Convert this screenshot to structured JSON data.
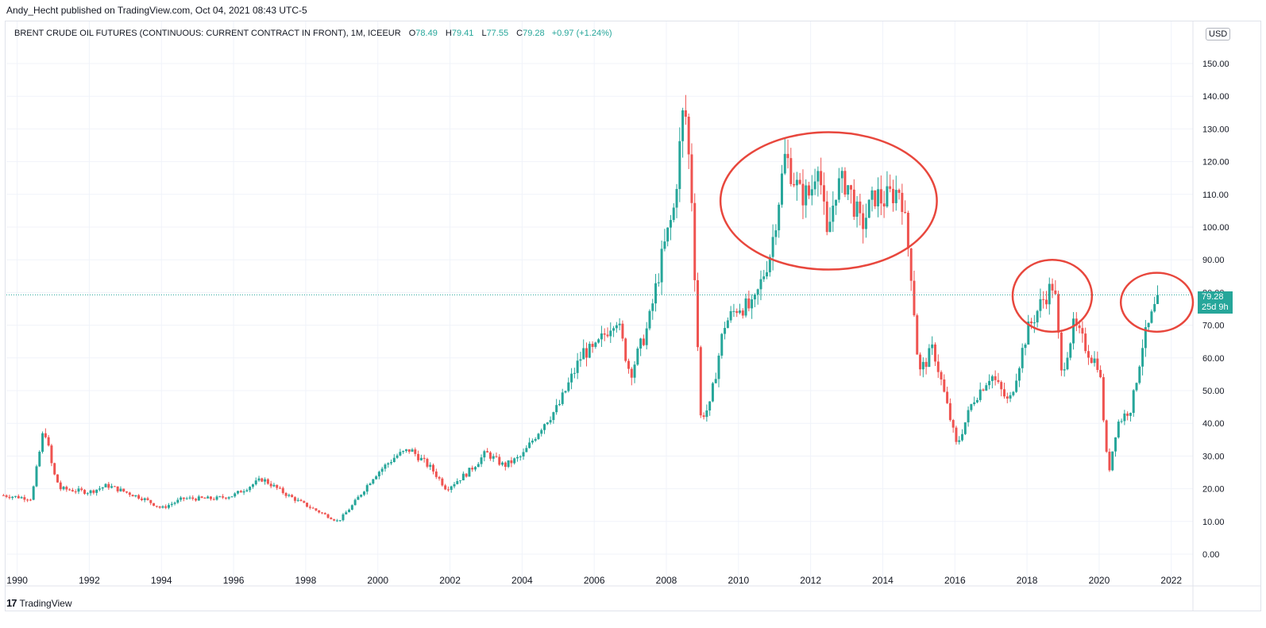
{
  "header": {
    "published": "Andy_Hecht published on TradingView.com, Oct 04, 2021 08:43 UTC-5"
  },
  "legend": {
    "symbol": "BRENT CRUDE OIL FUTURES (CONTINUOUS: CURRENT CONTRACT IN FRONT), 1M, ICEEUR",
    "o_label": "O",
    "o_value": "78.49",
    "h_label": "H",
    "h_value": "79.41",
    "l_label": "L",
    "l_value": "77.55",
    "c_label": "C",
    "c_value": "79.28",
    "change": "+0.97 (+1.24%)"
  },
  "axis": {
    "currency": "USD"
  },
  "price_tag": {
    "price": "79.28",
    "countdown": "25d 9h"
  },
  "footer": {
    "logo": "17",
    "brand": "TradingView"
  },
  "colors": {
    "up": "#26a69a",
    "down": "#ef5350",
    "annotation": "#e8473d",
    "grid": "#f0f3fa"
  },
  "chart_data": {
    "type": "candlestick",
    "title": "BRENT CRUDE OIL FUTURES (CONTINUOUS: CURRENT CONTRACT IN FRONT), 1M, ICEEUR",
    "interval": "1M",
    "ylim": [
      -5,
      160
    ],
    "y_ticks": [
      0,
      10,
      20,
      30,
      40,
      50,
      60,
      70,
      80,
      90,
      100,
      110,
      120,
      130,
      140,
      150
    ],
    "y_tick_labels": [
      "0.00",
      "10.00",
      "20.00",
      "30.00",
      "40.00",
      "50.00",
      "60.00",
      "70.00",
      "80.00",
      "90.00",
      "100.00",
      "110.00",
      "120.00",
      "130.00",
      "140.00",
      "150.00"
    ],
    "x_ticks": [
      1990,
      1992,
      1994,
      1996,
      1998,
      2000,
      2002,
      2004,
      2006,
      2008,
      2010,
      2012,
      2014,
      2016,
      2018,
      2020,
      2022
    ],
    "x_tick_labels": [
      "1990",
      "1992",
      "1994",
      "1996",
      "1998",
      "2000",
      "2002",
      "2004",
      "2006",
      "2008",
      "2010",
      "2012",
      "2014",
      "2016",
      "2018",
      "2020",
      "2022"
    ],
    "last_price": 79.28,
    "price_anchors": [
      [
        1989.6,
        18
      ],
      [
        1990.4,
        17
      ],
      [
        1990.6,
        30
      ],
      [
        1990.75,
        39
      ],
      [
        1991.0,
        25
      ],
      [
        1991.2,
        20
      ],
      [
        1992.0,
        19
      ],
      [
        1992.5,
        21
      ],
      [
        1993.5,
        17
      ],
      [
        1994.0,
        14
      ],
      [
        1994.6,
        17
      ],
      [
        1995.5,
        17
      ],
      [
        1996.0,
        18
      ],
      [
        1996.8,
        23
      ],
      [
        1997.5,
        18
      ],
      [
        1998.0,
        15
      ],
      [
        1998.9,
        10
      ],
      [
        1999.3,
        15
      ],
      [
        1999.9,
        24
      ],
      [
        2000.5,
        30
      ],
      [
        2000.9,
        32
      ],
      [
        2001.5,
        26
      ],
      [
        2001.9,
        20
      ],
      [
        2002.5,
        25
      ],
      [
        2003.0,
        31
      ],
      [
        2003.5,
        27
      ],
      [
        2004.0,
        30
      ],
      [
        2004.6,
        40
      ],
      [
        2005.0,
        45
      ],
      [
        2005.7,
        62
      ],
      [
        2006.0,
        62
      ],
      [
        2006.6,
        73
      ],
      [
        2007.0,
        55
      ],
      [
        2007.5,
        70
      ],
      [
        2007.9,
        92
      ],
      [
        2008.2,
        105
      ],
      [
        2008.5,
        139
      ],
      [
        2008.7,
        110
      ],
      [
        2008.95,
        42
      ],
      [
        2009.2,
        45
      ],
      [
        2009.6,
        70
      ],
      [
        2010.0,
        76
      ],
      [
        2010.4,
        75
      ],
      [
        2010.9,
        93
      ],
      [
        2011.3,
        122
      ],
      [
        2011.7,
        110
      ],
      [
        2012.0,
        110
      ],
      [
        2012.2,
        122
      ],
      [
        2012.45,
        96
      ],
      [
        2012.7,
        112
      ],
      [
        2013.0,
        114
      ],
      [
        2013.4,
        100
      ],
      [
        2013.8,
        110
      ],
      [
        2014.0,
        108
      ],
      [
        2014.5,
        112
      ],
      [
        2014.8,
        85
      ],
      [
        2015.0,
        55
      ],
      [
        2015.4,
        63
      ],
      [
        2015.9,
        40
      ],
      [
        2016.05,
        33
      ],
      [
        2016.5,
        47
      ],
      [
        2017.0,
        55
      ],
      [
        2017.5,
        46
      ],
      [
        2018.0,
        68
      ],
      [
        2018.4,
        77
      ],
      [
        2018.75,
        83
      ],
      [
        2018.95,
        55
      ],
      [
        2019.3,
        70
      ],
      [
        2019.8,
        60
      ],
      [
        2020.0,
        58
      ],
      [
        2020.25,
        24
      ],
      [
        2020.5,
        40
      ],
      [
        2020.9,
        45
      ],
      [
        2021.2,
        64
      ],
      [
        2021.5,
        74
      ],
      [
        2021.7,
        79
      ]
    ],
    "annotations": [
      {
        "type": "ellipse",
        "center": [
          2012.5,
          108
        ],
        "radius": [
          3.0,
          21
        ]
      },
      {
        "type": "ellipse",
        "center": [
          2018.7,
          79
        ],
        "radius": [
          1.1,
          11
        ]
      },
      {
        "type": "ellipse",
        "center": [
          2021.6,
          77
        ],
        "radius": [
          1.0,
          9
        ]
      }
    ]
  }
}
